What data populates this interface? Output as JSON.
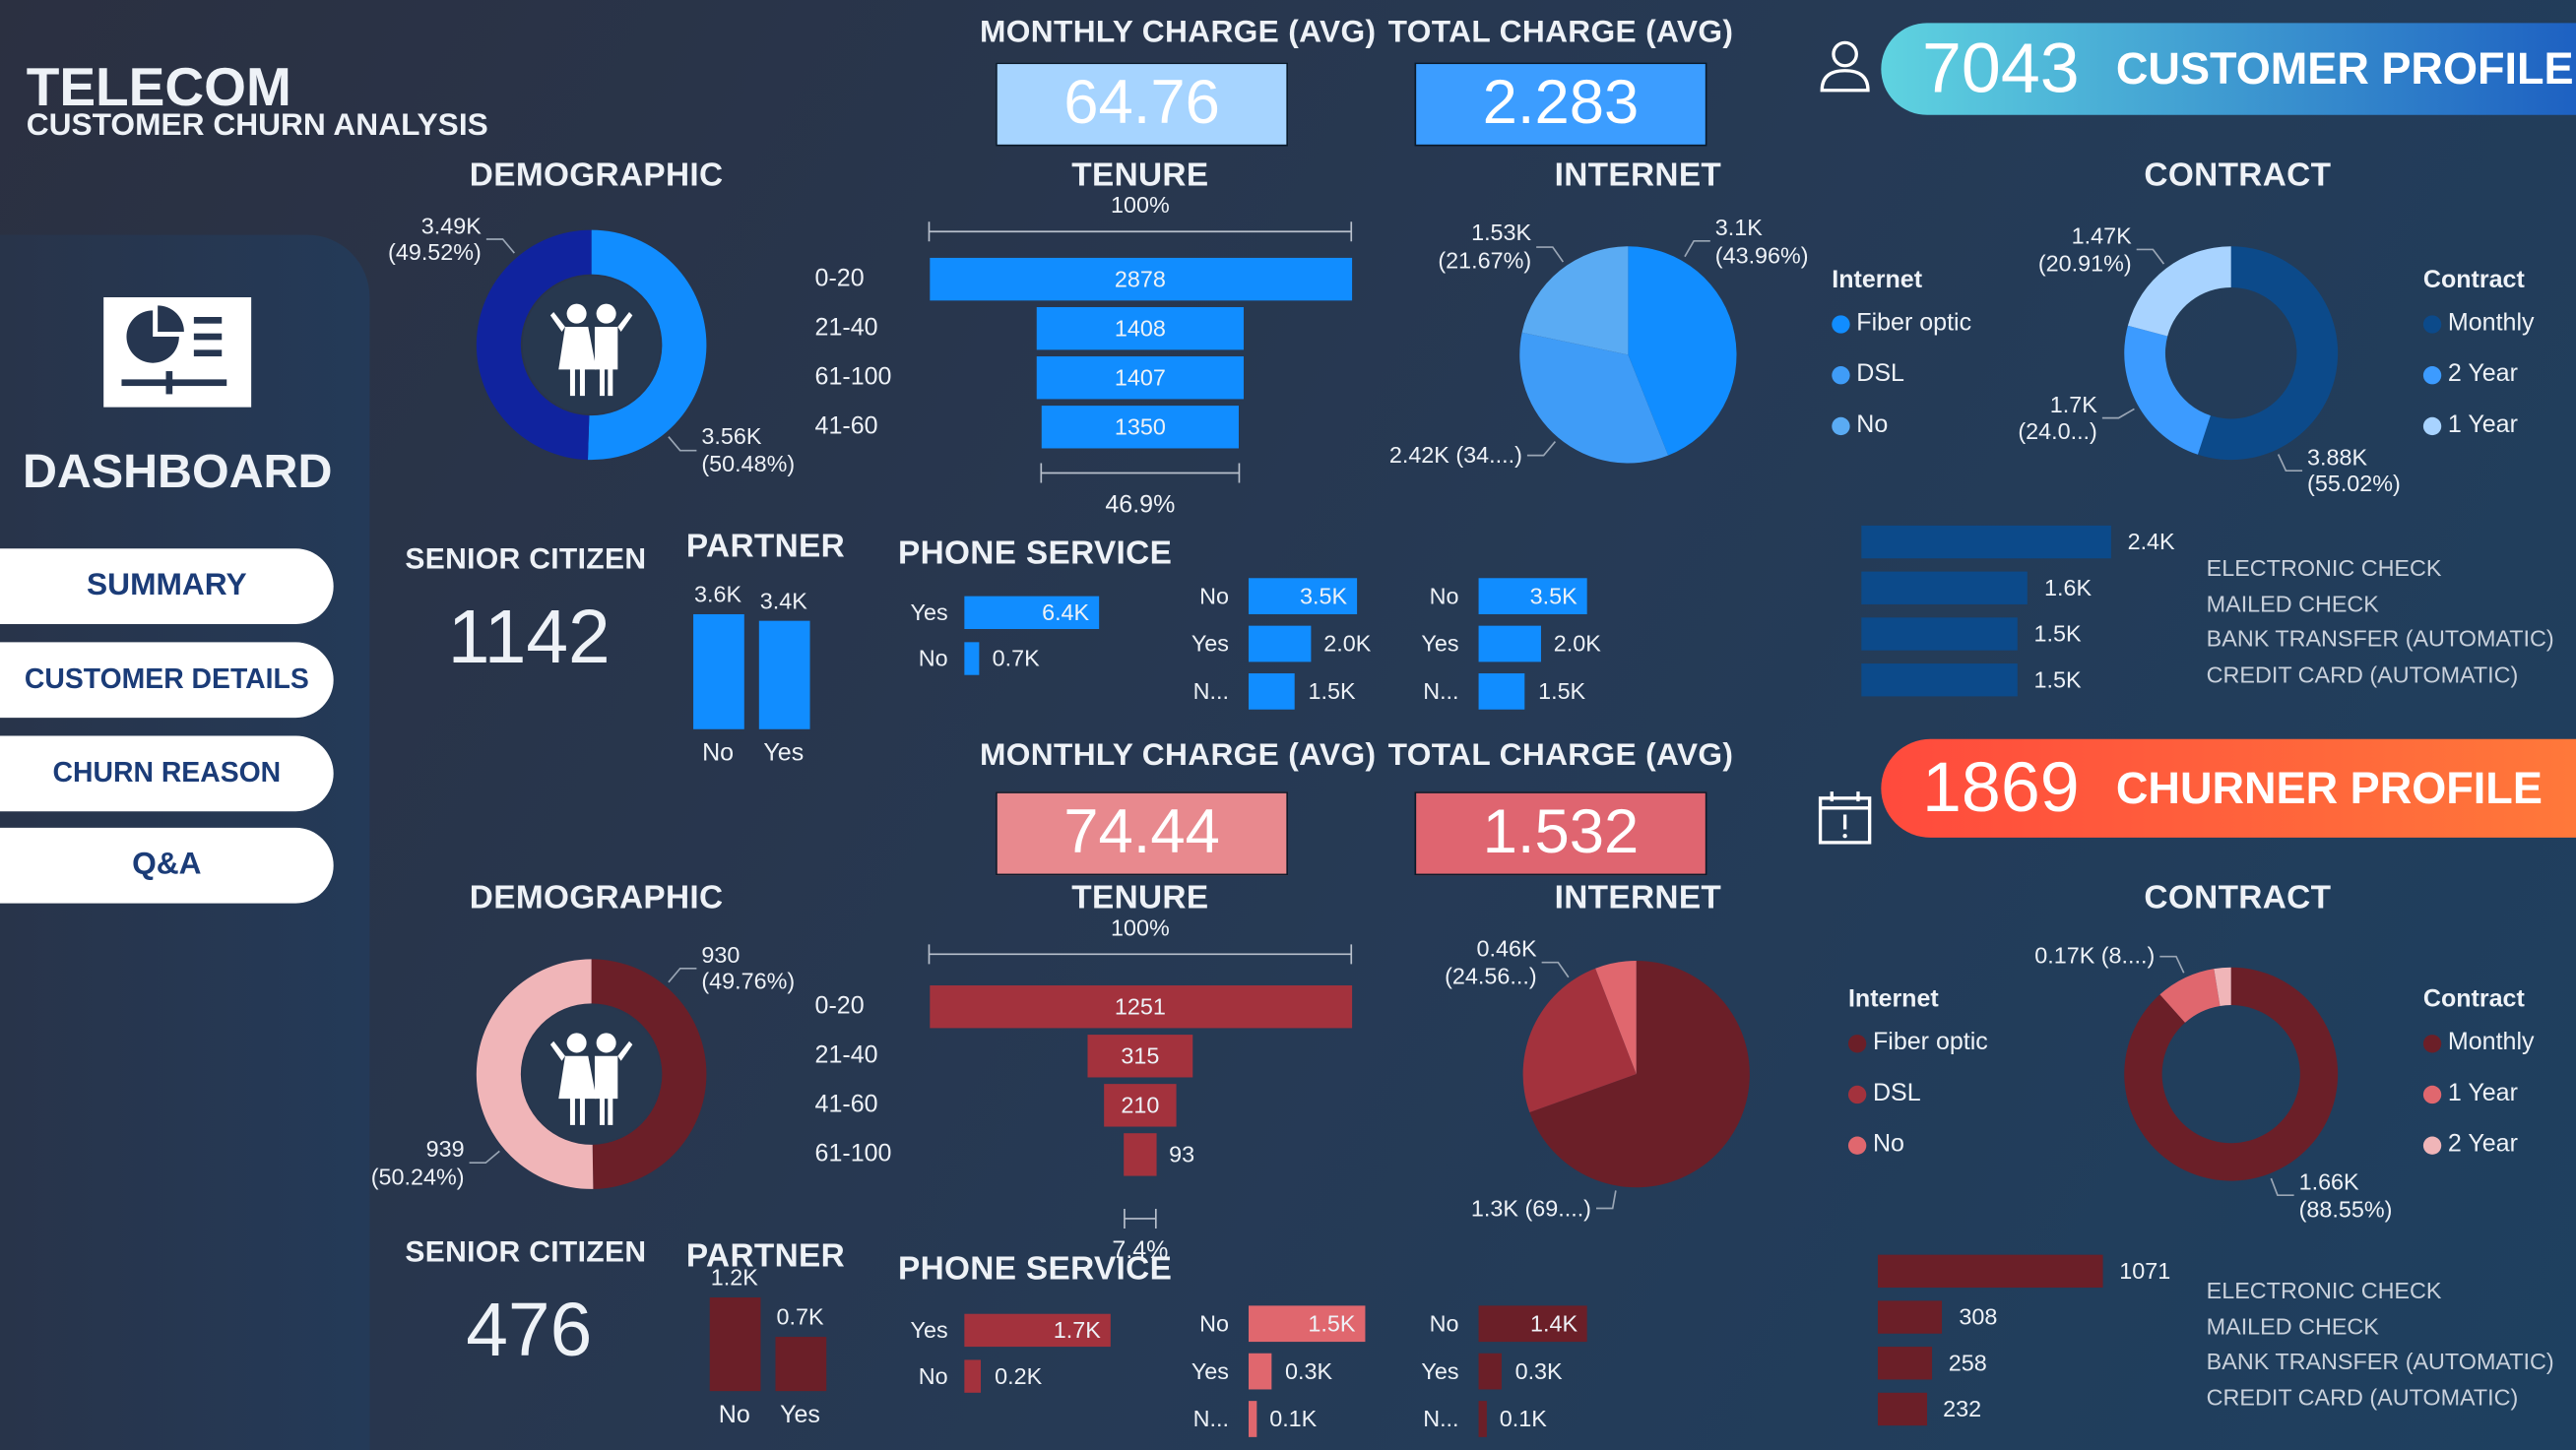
{
  "header": {
    "title": "TELECOM",
    "subtitle": "CUSTOMER CHURN ANALYSIS"
  },
  "sidebar": {
    "heading": "DASHBOARD",
    "icon": "dashboard-report-icon",
    "buttons": [
      "SUMMARY",
      "CUSTOMER DETAILS",
      "CHURN REASON",
      "Q&A"
    ]
  },
  "profiles": [
    {
      "icon": "user-icon",
      "banner_count": "7043",
      "banner_label": "CUSTOMER PROFILE",
      "colors": {
        "banner_from": "#5fd3e0",
        "banner_to": "#1b5cc0",
        "kpi_monthly": "#a6d4ff",
        "kpi_total": "#3c9dff",
        "bar": "#118dff",
        "bar2": "#118dff",
        "bar3": "#118dff",
        "partner": "#118dff",
        "payment": "#0c4a8a",
        "funnel": "#118dff"
      },
      "monthly_charge": {
        "title": "MONTHLY CHARGE (AVG)",
        "value": "64.76"
      },
      "total_charge": {
        "title": "TOTAL CHARGE (AVG)",
        "value": "2.283"
      },
      "demographic": {
        "title": "DEMOGRAPHIC",
        "slices": [
          {
            "value": 3560,
            "label": "3.56K",
            "pct": "(50.48%)",
            "color": "#118dff"
          },
          {
            "value": 3490,
            "label": "3.49K",
            "pct": "(49.52%)",
            "color": "#10239e"
          }
        ]
      },
      "tenure": {
        "title": "TENURE",
        "top_label": "100%",
        "bottom_label": "46.9%",
        "rows": [
          {
            "label": "0-20",
            "value": 2878,
            "text": "2878"
          },
          {
            "label": "21-40",
            "value": 1408,
            "text": "1408"
          },
          {
            "label": "61-100",
            "value": 1407,
            "text": "1407"
          },
          {
            "label": "41-60",
            "value": 1350,
            "text": "1350"
          }
        ]
      },
      "internet": {
        "title": "INTERNET",
        "legend_title": "Internet",
        "slices": [
          {
            "name": "Fiber optic",
            "value": 3100,
            "label": "3.1K",
            "pct": "(43.96%)",
            "color": "#118dff"
          },
          {
            "name": "DSL",
            "value": 2420,
            "label": "2.42K (34....)",
            "pct": "",
            "color": "#3f9cf7"
          },
          {
            "name": "No",
            "value": 1530,
            "label": "1.53K",
            "pct": "(21.67%)",
            "color": "#5aabf3"
          }
        ]
      },
      "contract": {
        "title": "CONTRACT",
        "legend_title": "Contract",
        "slices": [
          {
            "name": "Monthly",
            "value": 3880,
            "label": "3.88K",
            "pct": "(55.02%)",
            "color": "#0c4a8a"
          },
          {
            "name": "2 Year",
            "value": 1700,
            "label": "1.7K",
            "pct": "(24.0...)",
            "color": "#3c9bff"
          },
          {
            "name": "1 Year",
            "value": 1470,
            "label": "1.47K",
            "pct": "(20.91%)",
            "color": "#a8d3ff"
          }
        ]
      },
      "senior_citizen": {
        "title": "SENIOR CITIZEN",
        "value": "1142"
      },
      "partner": {
        "title": "PARTNER",
        "bars": [
          {
            "label": "No",
            "value": 3.6,
            "text": "3.6K"
          },
          {
            "label": "Yes",
            "value": 3.4,
            "text": "3.4K"
          }
        ]
      },
      "phone_service": {
        "title": "PHONE SERVICE",
        "groups": [
          [
            {
              "label": "Yes",
              "value": 6.4,
              "text": "6.4K"
            },
            {
              "label": "No",
              "value": 0.7,
              "text": "0.7K"
            }
          ],
          [
            {
              "label": "No",
              "value": 3.5,
              "text": "3.5K"
            },
            {
              "label": "Yes",
              "value": 2.0,
              "text": "2.0K"
            },
            {
              "label": "N...",
              "value": 1.5,
              "text": "1.5K"
            }
          ],
          [
            {
              "label": "No",
              "value": 3.5,
              "text": "3.5K"
            },
            {
              "label": "Yes",
              "value": 2.0,
              "text": "2.0K"
            },
            {
              "label": "N...",
              "value": 1.5,
              "text": "1.5K"
            }
          ]
        ]
      },
      "payment": {
        "bars": [
          {
            "value": 2.4,
            "text": "2.4K"
          },
          {
            "value": 1.6,
            "text": "1.6K"
          },
          {
            "value": 1.5,
            "text": "1.5K"
          },
          {
            "value": 1.5,
            "text": "1.5K"
          }
        ],
        "labels": [
          "ELECTRONIC CHECK",
          "MAILED CHECK",
          "BANK TRANSFER (AUTOMATIC)",
          "CREDIT CARD (AUTOMATIC)"
        ]
      }
    },
    {
      "icon": "calendar-alert-icon",
      "banner_count": "1869",
      "banner_label": "CHURNER PROFILE",
      "colors": {
        "banner_from": "#ff4a3d",
        "banner_to": "#ff7a3a",
        "kpi_monthly": "#e8898e",
        "kpi_total": "#df6570",
        "bar": "#a3323d",
        "bar2": "#e0676e",
        "bar3": "#6b1f28",
        "partner": "#6b1f28",
        "payment": "#6b1f28",
        "funnel": "#a3323d"
      },
      "monthly_charge": {
        "title": "MONTHLY CHARGE (AVG)",
        "value": "74.44"
      },
      "total_charge": {
        "title": "TOTAL CHARGE (AVG)",
        "value": "1.532"
      },
      "demographic": {
        "title": "DEMOGRAPHIC",
        "slices": [
          {
            "value": 930,
            "label": "930",
            "pct": "(49.76%)",
            "color": "#6b1f28"
          },
          {
            "value": 939,
            "label": "939",
            "pct": "(50.24%)",
            "color": "#f0b5b8"
          }
        ]
      },
      "tenure": {
        "title": "TENURE",
        "top_label": "100%",
        "bottom_label": "7.4%",
        "rows": [
          {
            "label": "0-20",
            "value": 1251,
            "text": "1251"
          },
          {
            "label": "21-40",
            "value": 315,
            "text": "315"
          },
          {
            "label": "41-60",
            "value": 210,
            "text": "210"
          },
          {
            "label": "61-100",
            "value": 93,
            "text": "93"
          }
        ]
      },
      "internet": {
        "title": "INTERNET",
        "legend_title": "Internet",
        "slices": [
          {
            "name": "Fiber optic",
            "value": 1300,
            "label": "1.3K (69....)",
            "pct": "",
            "color": "#6b1f28"
          },
          {
            "name": "DSL",
            "value": 460,
            "label": "0.46K",
            "pct": "(24.56...)",
            "color": "#a3323d"
          },
          {
            "name": "No",
            "value": 110,
            "label": "",
            "pct": "",
            "color": "#e0676e"
          }
        ]
      },
      "contract": {
        "title": "CONTRACT",
        "legend_title": "Contract",
        "slices": [
          {
            "name": "Monthly",
            "value": 1660,
            "label": "1.66K",
            "pct": "(88.55%)",
            "color": "#6b1f28"
          },
          {
            "name": "1 Year",
            "value": 170,
            "label": "0.17K (8....)",
            "pct": "",
            "color": "#e0676e"
          },
          {
            "name": "2 Year",
            "value": 48,
            "label": "",
            "pct": "",
            "color": "#f0b5b8"
          }
        ]
      },
      "senior_citizen": {
        "title": "SENIOR CITIZEN",
        "value": "476"
      },
      "partner": {
        "title": "PARTNER",
        "bars": [
          {
            "label": "No",
            "value": 1.2,
            "text": "1.2K"
          },
          {
            "label": "Yes",
            "value": 0.7,
            "text": "0.7K"
          }
        ]
      },
      "phone_service": {
        "title": "PHONE SERVICE",
        "groups": [
          [
            {
              "label": "Yes",
              "value": 1.7,
              "text": "1.7K"
            },
            {
              "label": "No",
              "value": 0.2,
              "text": "0.2K"
            }
          ],
          [
            {
              "label": "No",
              "value": 1.5,
              "text": "1.5K"
            },
            {
              "label": "Yes",
              "value": 0.3,
              "text": "0.3K"
            },
            {
              "label": "N...",
              "value": 0.1,
              "text": "0.1K"
            }
          ],
          [
            {
              "label": "No",
              "value": 1.4,
              "text": "1.4K"
            },
            {
              "label": "Yes",
              "value": 0.3,
              "text": "0.3K"
            },
            {
              "label": "N...",
              "value": 0.1,
              "text": "0.1K"
            }
          ]
        ]
      },
      "payment": {
        "bars": [
          {
            "value": 1071,
            "text": "1071"
          },
          {
            "value": 308,
            "text": "308"
          },
          {
            "value": 258,
            "text": "258"
          },
          {
            "value": 232,
            "text": "232"
          }
        ],
        "labels": [
          "ELECTRONIC CHECK",
          "MAILED CHECK",
          "BANK TRANSFER (AUTOMATIC)",
          "CREDIT CARD (AUTOMATIC)"
        ]
      }
    }
  ]
}
